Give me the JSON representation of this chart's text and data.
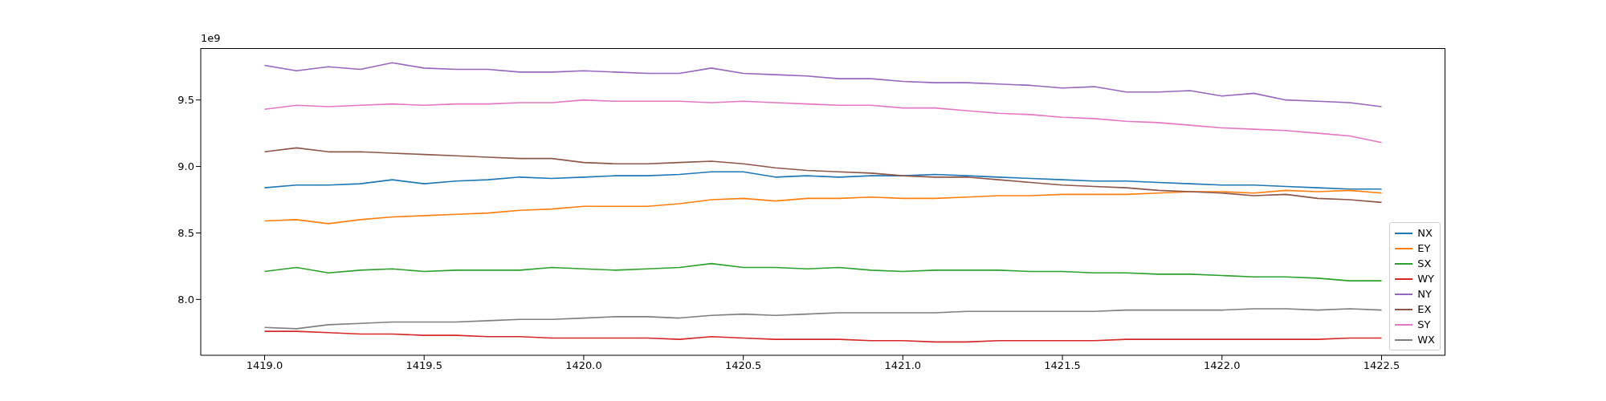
{
  "chart_data": {
    "type": "line",
    "annotations": [
      "1e9"
    ],
    "x": [
      1419.0,
      1419.1,
      1419.2,
      1419.3,
      1419.4,
      1419.5,
      1419.6,
      1419.7,
      1419.8,
      1419.9,
      1420.0,
      1420.1,
      1420.2,
      1420.3,
      1420.4,
      1420.5,
      1420.6,
      1420.7,
      1420.8,
      1420.9,
      1421.0,
      1421.1,
      1421.2,
      1421.3,
      1421.4,
      1421.5,
      1421.6,
      1421.7,
      1421.8,
      1421.9,
      1422.0,
      1422.1,
      1422.2,
      1422.3,
      1422.4,
      1422.5
    ],
    "series": [
      {
        "name": "NX",
        "color": "#1f77b4",
        "values": [
          8.84,
          8.86,
          8.86,
          8.87,
          8.9,
          8.87,
          8.89,
          8.9,
          8.92,
          8.91,
          8.92,
          8.93,
          8.93,
          8.94,
          8.96,
          8.96,
          8.92,
          8.93,
          8.92,
          8.93,
          8.93,
          8.94,
          8.93,
          8.92,
          8.91,
          8.9,
          8.89,
          8.89,
          8.88,
          8.87,
          8.86,
          8.86,
          8.85,
          8.84,
          8.83,
          8.83
        ]
      },
      {
        "name": "EY",
        "color": "#ff7f0e",
        "values": [
          8.59,
          8.6,
          8.57,
          8.6,
          8.62,
          8.63,
          8.64,
          8.65,
          8.67,
          8.68,
          8.7,
          8.7,
          8.7,
          8.72,
          8.75,
          8.76,
          8.74,
          8.76,
          8.76,
          8.77,
          8.76,
          8.76,
          8.77,
          8.78,
          8.78,
          8.79,
          8.79,
          8.79,
          8.8,
          8.81,
          8.81,
          8.8,
          8.82,
          8.81,
          8.82,
          8.8
        ]
      },
      {
        "name": "SX",
        "color": "#2ca02c",
        "values": [
          8.21,
          8.24,
          8.2,
          8.22,
          8.23,
          8.21,
          8.22,
          8.22,
          8.22,
          8.24,
          8.23,
          8.22,
          8.23,
          8.24,
          8.27,
          8.24,
          8.24,
          8.23,
          8.24,
          8.22,
          8.21,
          8.22,
          8.22,
          8.22,
          8.21,
          8.21,
          8.2,
          8.2,
          8.19,
          8.19,
          8.18,
          8.17,
          8.17,
          8.16,
          8.14,
          8.14
        ]
      },
      {
        "name": "WY",
        "color": "#d62728",
        "values": [
          7.76,
          7.76,
          7.75,
          7.74,
          7.74,
          7.73,
          7.73,
          7.72,
          7.72,
          7.71,
          7.71,
          7.71,
          7.71,
          7.7,
          7.72,
          7.71,
          7.7,
          7.7,
          7.7,
          7.69,
          7.69,
          7.68,
          7.68,
          7.69,
          7.69,
          7.69,
          7.69,
          7.7,
          7.7,
          7.7,
          7.7,
          7.7,
          7.7,
          7.7,
          7.71,
          7.71
        ]
      },
      {
        "name": "NY",
        "color": "#9467bd",
        "values": [
          9.76,
          9.72,
          9.75,
          9.73,
          9.78,
          9.74,
          9.73,
          9.73,
          9.71,
          9.71,
          9.72,
          9.71,
          9.7,
          9.7,
          9.74,
          9.7,
          9.69,
          9.68,
          9.66,
          9.66,
          9.64,
          9.63,
          9.63,
          9.62,
          9.61,
          9.59,
          9.6,
          9.56,
          9.56,
          9.57,
          9.53,
          9.55,
          9.5,
          9.49,
          9.48,
          9.45
        ]
      },
      {
        "name": "EX",
        "color": "#8c564b",
        "values": [
          9.11,
          9.14,
          9.11,
          9.11,
          9.1,
          9.09,
          9.08,
          9.07,
          9.06,
          9.06,
          9.03,
          9.02,
          9.02,
          9.03,
          9.04,
          9.02,
          8.99,
          8.97,
          8.96,
          8.95,
          8.93,
          8.92,
          8.92,
          8.9,
          8.88,
          8.86,
          8.85,
          8.84,
          8.82,
          8.81,
          8.8,
          8.78,
          8.79,
          8.76,
          8.75,
          8.73
        ]
      },
      {
        "name": "SY",
        "color": "#e377c2",
        "values": [
          9.43,
          9.46,
          9.45,
          9.46,
          9.47,
          9.46,
          9.47,
          9.47,
          9.48,
          9.48,
          9.5,
          9.49,
          9.49,
          9.49,
          9.48,
          9.49,
          9.48,
          9.47,
          9.46,
          9.46,
          9.44,
          9.44,
          9.42,
          9.4,
          9.39,
          9.37,
          9.36,
          9.34,
          9.33,
          9.31,
          9.29,
          9.28,
          9.27,
          9.25,
          9.23,
          9.18
        ]
      },
      {
        "name": "WX",
        "color": "#7f7f7f",
        "values": [
          7.79,
          7.78,
          7.81,
          7.82,
          7.83,
          7.83,
          7.83,
          7.84,
          7.85,
          7.85,
          7.86,
          7.87,
          7.87,
          7.86,
          7.88,
          7.89,
          7.88,
          7.89,
          7.9,
          7.9,
          7.9,
          7.9,
          7.91,
          7.91,
          7.91,
          7.91,
          7.91,
          7.92,
          7.92,
          7.92,
          7.92,
          7.93,
          7.93,
          7.92,
          7.93,
          7.92
        ]
      }
    ],
    "xlim": [
      1418.8,
      1422.7
    ],
    "xticks": [
      {
        "value": 1419,
        "label": "1419.0"
      },
      1419.5,
      {
        "value": 1420,
        "label": "1420.0"
      },
      1420.5,
      {
        "value": 1421,
        "label": "1421.0"
      },
      1421.5,
      {
        "value": 1422,
        "label": "1422.0"
      },
      1422.5
    ],
    "ylim": [
      7.58,
      9.89
    ],
    "yticks": [
      {
        "value": 8,
        "label": "8.0"
      },
      8.5,
      {
        "value": 9,
        "label": "9.0"
      },
      9.5
    ],
    "legend": "bottom right"
  }
}
